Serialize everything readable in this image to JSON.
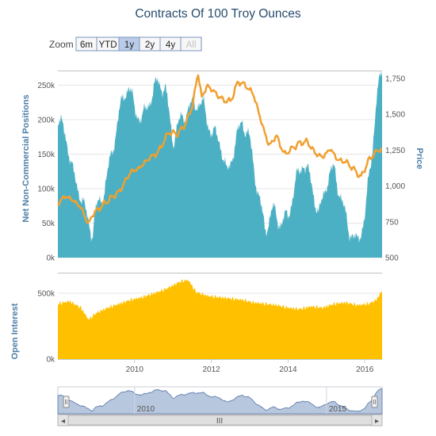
{
  "chart_data": {
    "type": "area",
    "title": "Contracts Of 100 Troy Ounces",
    "x_axis": {
      "ticks": [
        "2010",
        "2012",
        "2014",
        "2016"
      ],
      "range": [
        2008.0,
        2016.45
      ]
    },
    "net_positions": {
      "ylabel": "Net Non-Commercial Positions",
      "ylim": [
        0,
        270000
      ],
      "ticks": [
        "0k",
        "50k",
        "100k",
        "150k",
        "200k",
        "250k"
      ],
      "color": "#4bb0c3",
      "x": [
        2008.0,
        2008.2,
        2008.4,
        2008.6,
        2008.75,
        2008.9,
        2009.0,
        2009.2,
        2009.4,
        2009.6,
        2009.75,
        2009.85,
        2010.0,
        2010.2,
        2010.4,
        2010.6,
        2010.8,
        2011.0,
        2011.2,
        2011.4,
        2011.6,
        2011.8,
        2012.0,
        2012.2,
        2012.4,
        2012.6,
        2012.8,
        2013.0,
        2013.2,
        2013.4,
        2013.6,
        2013.8,
        2014.0,
        2014.2,
        2014.4,
        2014.6,
        2014.8,
        2015.0,
        2015.2,
        2015.4,
        2015.6,
        2015.8,
        2016.0,
        2016.2,
        2016.3,
        2016.45
      ],
      "values": [
        200000,
        180000,
        120000,
        90000,
        60000,
        35000,
        70000,
        95000,
        150000,
        210000,
        240000,
        250000,
        215000,
        200000,
        230000,
        255000,
        245000,
        170000,
        200000,
        215000,
        225000,
        220000,
        180000,
        175000,
        120000,
        160000,
        200000,
        170000,
        100000,
        40000,
        70000,
        50000,
        60000,
        110000,
        140000,
        110000,
        60000,
        110000,
        130000,
        80000,
        40000,
        20000,
        60000,
        160000,
        230000,
        270000
      ]
    },
    "price": {
      "ylabel": "Price",
      "ylim": [
        500,
        1800
      ],
      "ticks": [
        "500",
        "750",
        "1,000",
        "1,250",
        "1,500",
        "1,750"
      ],
      "color": "#f0a030",
      "x": [
        2008.0,
        2008.2,
        2008.4,
        2008.6,
        2008.8,
        2008.9,
        2009.1,
        2009.4,
        2009.6,
        2009.9,
        2010.1,
        2010.4,
        2010.6,
        2010.9,
        2011.1,
        2011.3,
        2011.5,
        2011.65,
        2011.75,
        2011.9,
        2012.1,
        2012.3,
        2012.5,
        2012.7,
        2012.9,
        2013.1,
        2013.3,
        2013.5,
        2013.7,
        2013.9,
        2014.1,
        2014.3,
        2014.5,
        2014.7,
        2014.9,
        2015.1,
        2015.3,
        2015.5,
        2015.7,
        2015.9,
        2016.1,
        2016.3,
        2016.45
      ],
      "values": [
        880,
        930,
        900,
        850,
        730,
        800,
        850,
        920,
        960,
        1100,
        1120,
        1200,
        1230,
        1380,
        1360,
        1420,
        1550,
        1790,
        1620,
        1700,
        1650,
        1600,
        1590,
        1730,
        1700,
        1640,
        1450,
        1280,
        1350,
        1220,
        1260,
        1300,
        1310,
        1230,
        1200,
        1260,
        1180,
        1170,
        1120,
        1060,
        1180,
        1240,
        1260
      ]
    },
    "open_interest": {
      "ylabel": "Open Interest",
      "ylim": [
        0,
        650000
      ],
      "ticks": [
        "0k",
        "500k"
      ],
      "color": "#ffc000",
      "x": [
        2008.0,
        2008.3,
        2008.6,
        2008.8,
        2009.0,
        2009.3,
        2009.6,
        2009.9,
        2010.2,
        2010.5,
        2010.8,
        2011.0,
        2011.2,
        2011.4,
        2011.6,
        2011.9,
        2012.2,
        2012.5,
        2012.8,
        2013.1,
        2013.4,
        2013.7,
        2014.0,
        2014.3,
        2014.6,
        2014.9,
        2015.2,
        2015.5,
        2015.8,
        2016.1,
        2016.3,
        2016.45
      ],
      "values": [
        420000,
        440000,
        390000,
        300000,
        350000,
        390000,
        420000,
        450000,
        470000,
        500000,
        530000,
        560000,
        590000,
        600000,
        510000,
        480000,
        470000,
        460000,
        450000,
        430000,
        420000,
        410000,
        390000,
        380000,
        400000,
        390000,
        420000,
        430000,
        410000,
        420000,
        450000,
        520000
      ]
    },
    "navigator": {
      "ticks": [
        "2010",
        "2015"
      ]
    },
    "grid": true,
    "legend": "none"
  },
  "zoom": {
    "label": "Zoom",
    "buttons": [
      {
        "label": "6m",
        "state": "normal"
      },
      {
        "label": "YTD",
        "state": "normal"
      },
      {
        "label": "1y",
        "state": "active"
      },
      {
        "label": "2y",
        "state": "normal"
      },
      {
        "label": "4y",
        "state": "normal"
      },
      {
        "label": "All",
        "state": "disabled"
      }
    ]
  },
  "scrollbar": {
    "left_arrow": "◂",
    "right_arrow": "▸",
    "grip": "III"
  }
}
